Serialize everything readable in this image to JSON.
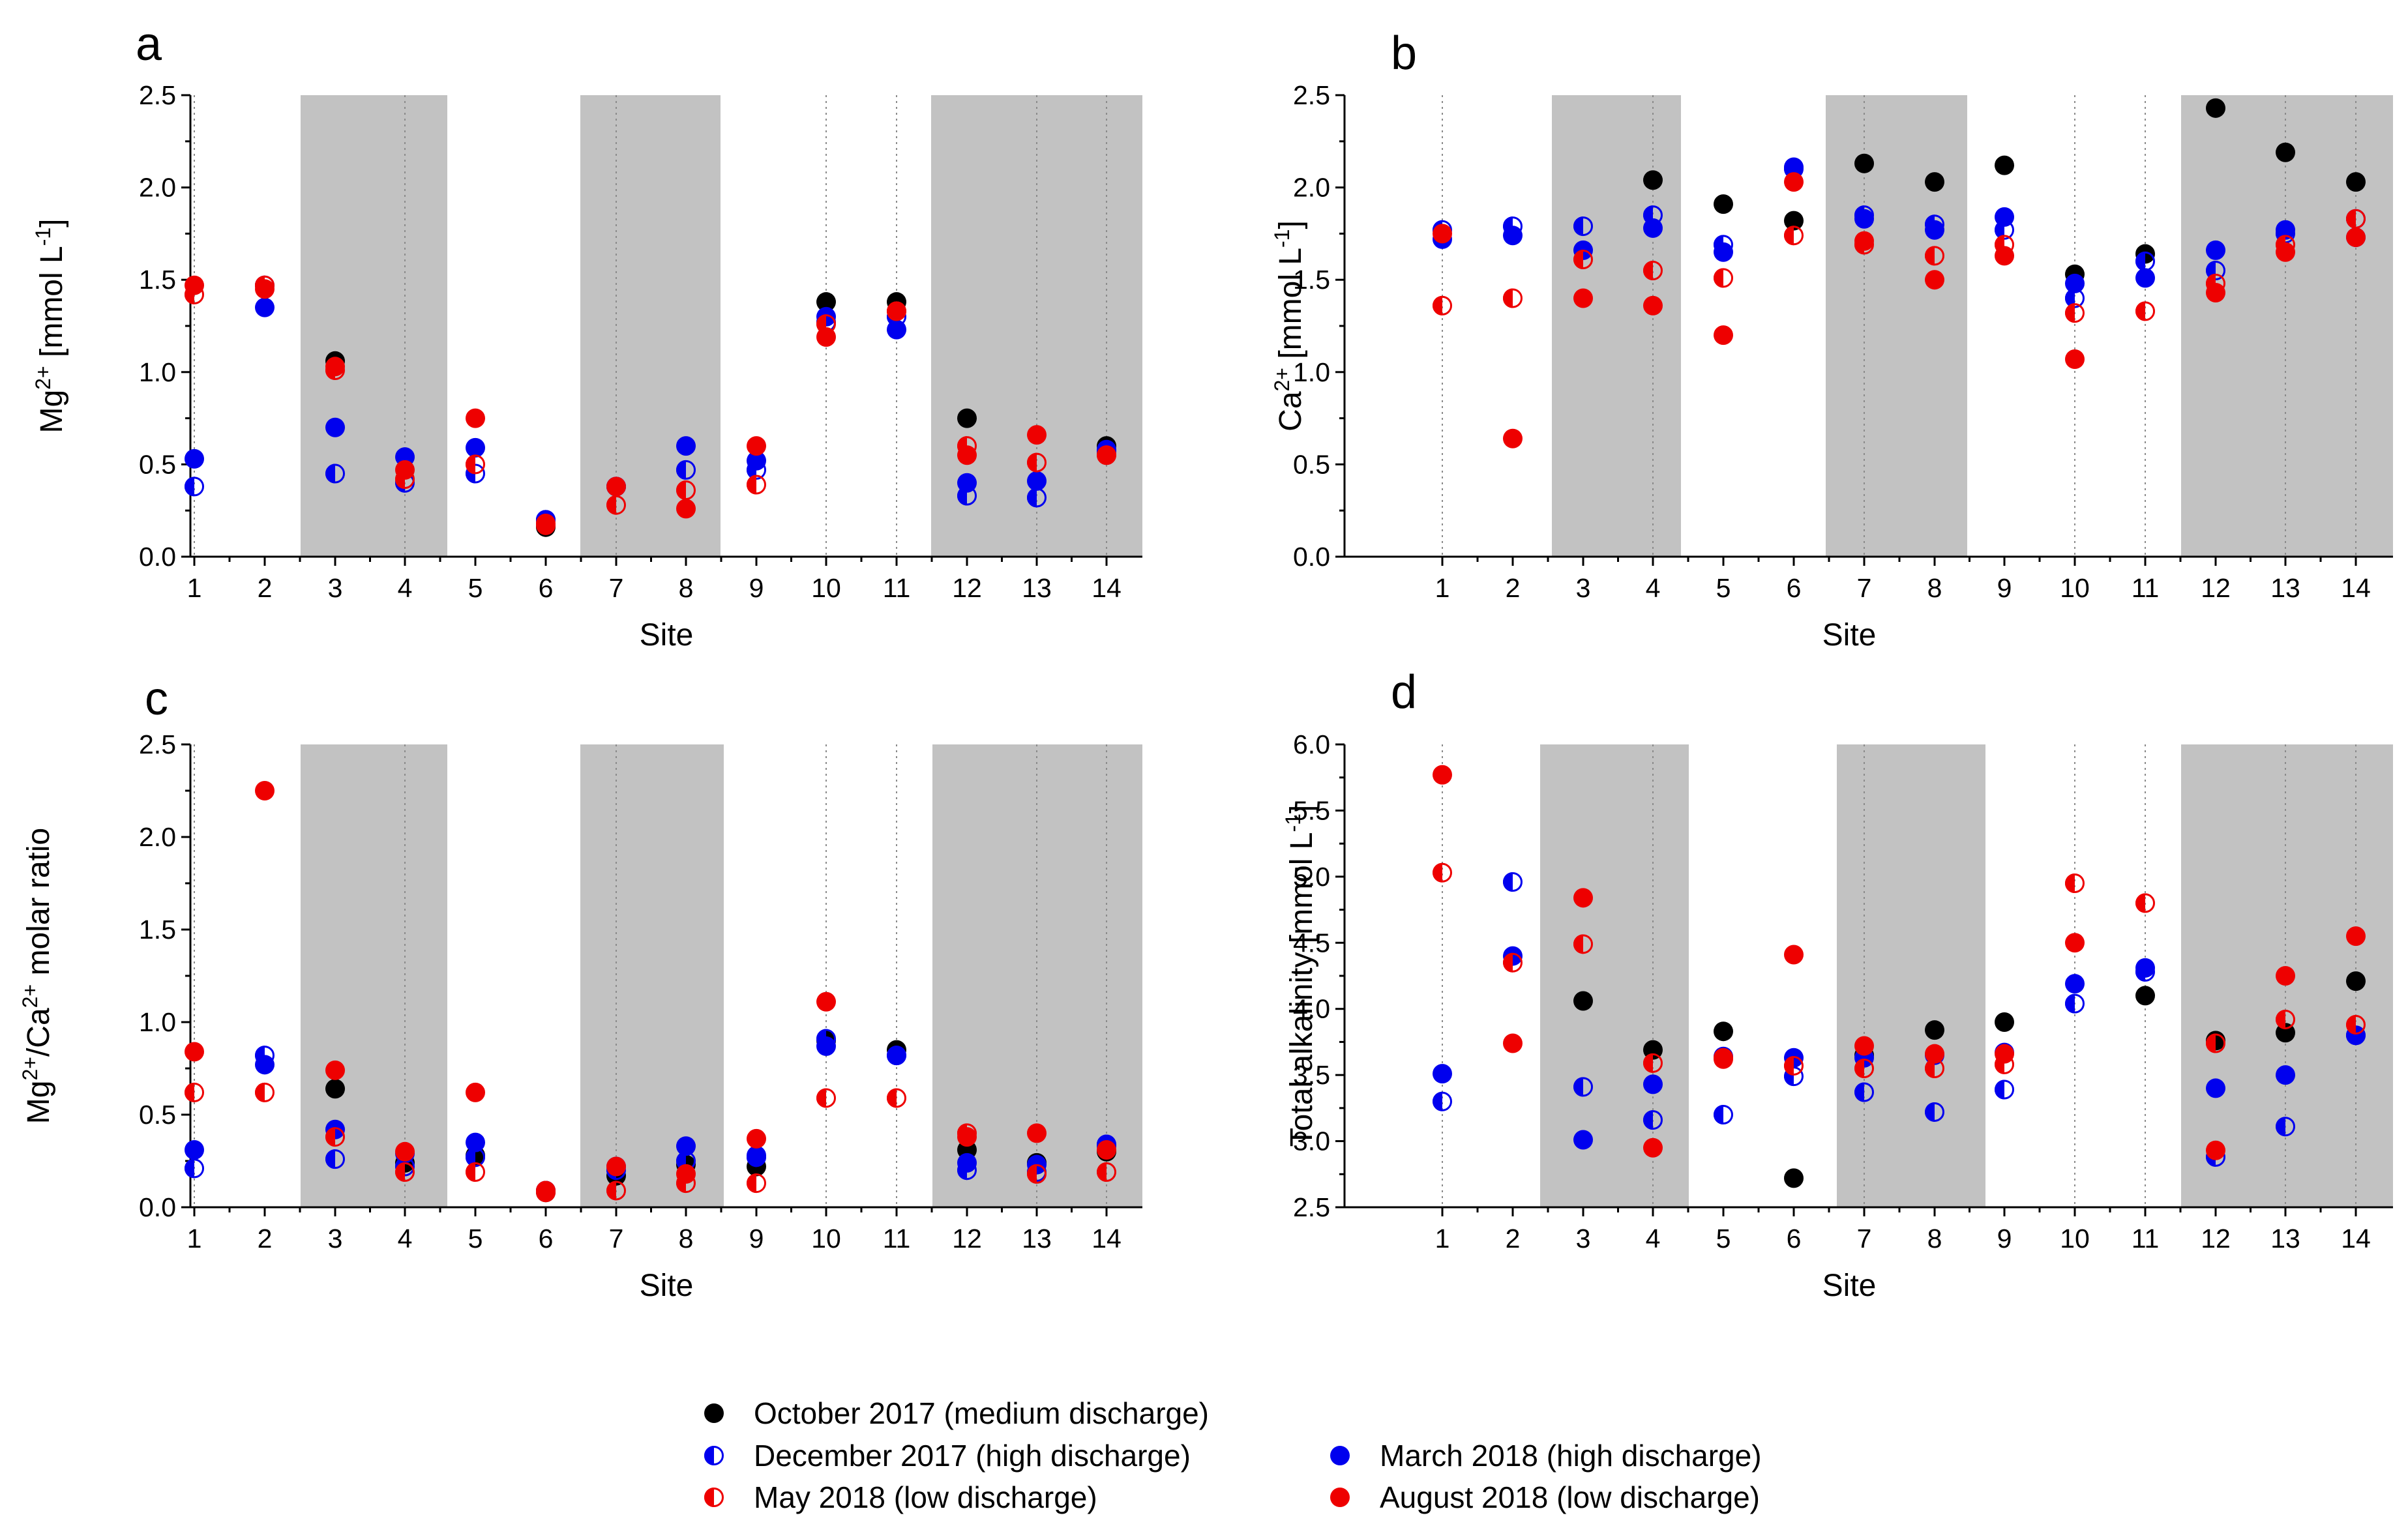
{
  "legend": [
    {
      "key": "oct",
      "label": "October 2017 (medium discharge)",
      "color": "#000000",
      "style": "filled"
    },
    {
      "key": "dec",
      "label": "December 2017 (high discharge)",
      "color": "#0000ee",
      "style": "half"
    },
    {
      "key": "mar",
      "label": "March 2018 (high discharge)",
      "color": "#0000ee",
      "style": "filled"
    },
    {
      "key": "may",
      "label": "May 2018 (low discharge)",
      "color": "#ee0000",
      "style": "half"
    },
    {
      "key": "aug",
      "label": "August 2018 (low discharge)",
      "color": "#ee0000",
      "style": "filled"
    }
  ],
  "chart_data": [
    {
      "id": "a",
      "panel_label": "a",
      "type": "scatter",
      "xlabel": "Site",
      "ylabel": {
        "base": "Mg",
        "sup": "2+",
        "rest": " [mmol L",
        "sup2": "-1",
        "close": "]"
      },
      "categories": [
        "1",
        "2",
        "3",
        "4",
        "5",
        "6",
        "7",
        "8",
        "9",
        "10",
        "11",
        "12",
        "13",
        "14"
      ],
      "ylim": [
        0,
        2.5
      ],
      "yticks": [
        "0.0",
        "0.5",
        "1.0",
        "1.5",
        "2.0",
        "2.5"
      ],
      "shaded_sites": [
        [
          3,
          4
        ],
        [
          7,
          8
        ],
        [
          12,
          14
        ]
      ],
      "series": [
        {
          "name": "October 2017 (medium discharge)",
          "values": [
            null,
            null,
            1.06,
            null,
            null,
            0.16,
            null,
            null,
            null,
            1.38,
            1.38,
            0.75,
            null,
            0.6
          ]
        },
        {
          "name": "December 2017 (high discharge)",
          "values": [
            0.38,
            1.47,
            0.45,
            0.4,
            0.45,
            0.2,
            0.38,
            0.47,
            0.47,
            1.27,
            1.3,
            0.33,
            0.32,
            0.57
          ]
        },
        {
          "name": "March 2018 (high discharge)",
          "values": [
            0.53,
            1.35,
            0.7,
            0.54,
            0.59,
            0.2,
            0.38,
            0.6,
            0.52,
            1.3,
            1.23,
            0.4,
            0.41,
            0.58
          ]
        },
        {
          "name": "May 2018 (low discharge)",
          "values": [
            1.42,
            1.47,
            1.01,
            0.42,
            0.5,
            0.18,
            0.28,
            0.36,
            0.39,
            1.26,
            1.33,
            0.6,
            0.51,
            0.55
          ]
        },
        {
          "name": "August 2018 (low discharge)",
          "values": [
            1.47,
            1.45,
            1.03,
            0.47,
            0.75,
            0.17,
            0.38,
            0.26,
            0.6,
            1.19,
            1.33,
            0.55,
            0.66,
            0.55
          ]
        }
      ]
    },
    {
      "id": "b",
      "panel_label": "b",
      "type": "scatter",
      "xlabel": "Site",
      "ylabel": {
        "base": "Ca",
        "sup": "2+",
        "rest": " [mmol L",
        "sup2": "-1",
        "close": "]"
      },
      "categories": [
        "1",
        "2",
        "3",
        "4",
        "5",
        "6",
        "7",
        "8",
        "9",
        "10",
        "11",
        "12",
        "13",
        "14"
      ],
      "ylim": [
        0,
        2.5
      ],
      "yticks": [
        "0.0",
        "0.5",
        "1.0",
        "1.5",
        "2.0",
        "2.5"
      ],
      "shaded_sites": [
        [
          3,
          4
        ],
        [
          7,
          8
        ],
        [
          12,
          14
        ]
      ],
      "series": [
        {
          "name": "October 2017 (medium discharge)",
          "values": [
            null,
            null,
            null,
            2.04,
            1.91,
            1.82,
            2.13,
            2.03,
            2.12,
            1.53,
            1.64,
            2.43,
            2.19,
            2.03
          ]
        },
        {
          "name": "December 2017 (high discharge)",
          "values": [
            1.77,
            1.79,
            1.79,
            1.85,
            1.69,
            2.1,
            1.85,
            1.8,
            1.77,
            1.4,
            1.6,
            1.55,
            1.75,
            1.83
          ]
        },
        {
          "name": "March 2018 (high discharge)",
          "values": [
            1.72,
            1.74,
            1.66,
            1.78,
            1.65,
            2.11,
            1.83,
            1.77,
            1.84,
            1.48,
            1.51,
            1.66,
            1.77,
            1.73
          ]
        },
        {
          "name": "May 2018 (low discharge)",
          "values": [
            1.36,
            1.4,
            1.61,
            1.55,
            1.51,
            1.74,
            1.69,
            1.63,
            1.69,
            1.32,
            1.33,
            1.48,
            1.69,
            1.83
          ]
        },
        {
          "name": "August 2018 (low discharge)",
          "values": [
            1.75,
            0.64,
            1.4,
            1.36,
            1.2,
            2.03,
            1.71,
            1.5,
            1.63,
            1.07,
            null,
            1.43,
            1.65,
            1.73
          ]
        }
      ]
    },
    {
      "id": "c",
      "panel_label": "c",
      "type": "scatter",
      "xlabel": "Site",
      "ylabel": {
        "base": "Mg",
        "sup": "2+",
        "rest": "/Ca",
        "sup2": "2+",
        "close": " molar ratio"
      },
      "categories": [
        "1",
        "2",
        "3",
        "4",
        "5",
        "6",
        "7",
        "8",
        "9",
        "10",
        "11",
        "12",
        "13",
        "14"
      ],
      "ylim": [
        0,
        2.5
      ],
      "yticks": [
        "0.0",
        "0.5",
        "1.0",
        "1.5",
        "2.0",
        "2.5"
      ],
      "shaded_sites": [
        [
          3,
          4
        ],
        [
          7,
          8
        ],
        [
          12,
          14
        ]
      ],
      "series": [
        {
          "name": "October 2017 (medium discharge)",
          "values": [
            null,
            null,
            0.64,
            0.24,
            0.28,
            0.08,
            0.17,
            0.23,
            0.22,
            0.9,
            0.85,
            0.31,
            0.24,
            0.3
          ]
        },
        {
          "name": "December 2017 (high discharge)",
          "values": [
            0.21,
            0.82,
            0.26,
            0.22,
            0.27,
            0.09,
            0.2,
            0.25,
            0.27,
            0.91,
            0.82,
            0.2,
            0.19,
            0.34
          ]
        },
        {
          "name": "March 2018 (high discharge)",
          "values": [
            0.31,
            0.77,
            0.42,
            0.29,
            0.35,
            0.09,
            0.22,
            0.33,
            0.28,
            0.87,
            0.82,
            0.24,
            0.23,
            0.33
          ]
        },
        {
          "name": "May 2018 (low discharge)",
          "values": [
            0.62,
            0.62,
            0.38,
            0.19,
            0.19,
            0.09,
            0.09,
            0.13,
            0.13,
            0.59,
            0.59,
            0.4,
            0.18,
            0.19
          ]
        },
        {
          "name": "August 2018 (low discharge)",
          "values": [
            0.84,
            2.25,
            0.74,
            0.3,
            0.62,
            0.08,
            0.22,
            0.18,
            0.37,
            1.11,
            null,
            0.38,
            0.4,
            0.31
          ]
        }
      ]
    },
    {
      "id": "d",
      "panel_label": "d",
      "type": "scatter",
      "xlabel": "Site",
      "ylabel": {
        "base": "Total alkalinity [mmol L",
        "sup": "-1",
        "rest": "]",
        "sup2": "",
        "close": ""
      },
      "categories": [
        "1",
        "2",
        "3",
        "4",
        "5",
        "6",
        "7",
        "8",
        "9",
        "10",
        "11",
        "12",
        "13",
        "14"
      ],
      "ylim": [
        2.5,
        6.0
      ],
      "yticks": [
        "2.5",
        "3.0",
        "3.5",
        "4.0",
        "4.5",
        "5.0",
        "5.5",
        "6.0"
      ],
      "shaded_sites": [
        [
          3,
          4
        ],
        [
          7,
          8
        ],
        [
          12,
          14
        ]
      ],
      "series": [
        {
          "name": "October 2017 (medium discharge)",
          "values": [
            null,
            null,
            4.06,
            3.69,
            3.83,
            2.72,
            3.65,
            3.84,
            3.9,
            null,
            4.1,
            3.76,
            3.82,
            4.21
          ]
        },
        {
          "name": "December 2017 (high discharge)",
          "values": [
            3.3,
            4.96,
            3.41,
            3.16,
            3.2,
            3.49,
            3.37,
            3.22,
            3.39,
            4.04,
            4.28,
            2.88,
            3.11,
            3.8
          ]
        },
        {
          "name": "March 2018 (high discharge)",
          "values": [
            3.51,
            4.4,
            3.01,
            3.43,
            3.64,
            3.63,
            3.63,
            3.65,
            3.67,
            4.19,
            4.31,
            3.4,
            3.5,
            3.8
          ]
        },
        {
          "name": "May 2018 (low discharge)",
          "values": [
            5.03,
            4.35,
            4.49,
            3.59,
            3.63,
            3.57,
            3.55,
            3.55,
            3.58,
            4.95,
            4.8,
            3.74,
            3.92,
            3.88
          ]
        },
        {
          "name": "August 2018 (low discharge)",
          "values": [
            5.77,
            3.74,
            4.84,
            2.95,
            3.62,
            4.41,
            3.72,
            3.66,
            3.66,
            4.5,
            null,
            2.93,
            4.25,
            4.55
          ]
        }
      ]
    }
  ]
}
